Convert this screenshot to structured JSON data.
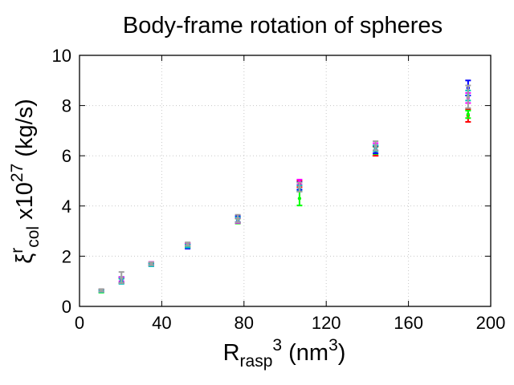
{
  "chart_data": {
    "type": "scatter",
    "title": "Body-frame rotation of spheres",
    "xlabel": {
      "base": "R",
      "sub": "rasp",
      "sup": "3",
      "rest": " (nm",
      "rest_sup": "3",
      "close": ")"
    },
    "ylabel": {
      "base": "ξ",
      "sup": "r",
      "sub": "col",
      "rest": " x10",
      "rest_sup": "27",
      "close": " (kg/s)"
    },
    "xlim": [
      0,
      200
    ],
    "ylim": [
      0,
      10
    ],
    "xticks": [
      0,
      40,
      80,
      120,
      160,
      200
    ],
    "yticks": [
      0,
      2,
      4,
      6,
      8,
      10
    ],
    "xtick_labels": [
      "0",
      "40",
      "80",
      "120",
      "160",
      "200"
    ],
    "ytick_labels": [
      "0",
      "2",
      "4",
      "6",
      "8",
      "10"
    ],
    "grid": true,
    "series": [
      {
        "name": "series-red",
        "color": "#ff0000",
        "x": [
          10.6,
          20.4,
          34.9,
          52.6,
          77,
          107,
          144,
          189
        ],
        "y": [
          0.62,
          1.02,
          1.7,
          2.45,
          3.44,
          4.88,
          6.18,
          7.6
        ],
        "err": [
          0.05,
          0.1,
          0.05,
          0.07,
          0.1,
          0.13,
          0.18,
          0.25
        ]
      },
      {
        "name": "series-green",
        "color": "#00ff00",
        "x": [
          10.6,
          20.4,
          34.9,
          52.6,
          77,
          107,
          144,
          189
        ],
        "y": [
          0.61,
          1.05,
          1.68,
          2.42,
          3.4,
          4.3,
          6.22,
          7.65
        ],
        "err": [
          0.06,
          0.1,
          0.05,
          0.06,
          0.1,
          0.28,
          0.15,
          0.15
        ]
      },
      {
        "name": "series-blue",
        "color": "#0000ff",
        "x": [
          10.6,
          20.4,
          34.9,
          52.6,
          77,
          107,
          144,
          189
        ],
        "y": [
          0.63,
          1.05,
          1.66,
          2.38,
          3.48,
          4.8,
          6.25,
          8.7
        ],
        "err": [
          0.04,
          0.12,
          0.05,
          0.08,
          0.12,
          0.15,
          0.15,
          0.3
        ]
      },
      {
        "name": "series-magenta",
        "color": "#ff00ff",
        "x": [
          10.6,
          20.4,
          34.9,
          52.6,
          77,
          107,
          144,
          189
        ],
        "y": [
          0.63,
          1.08,
          1.72,
          2.47,
          3.42,
          4.95,
          6.35,
          8.3
        ],
        "err": [
          0.04,
          0.08,
          0.05,
          0.05,
          0.1,
          0.1,
          0.15,
          0.2
        ]
      },
      {
        "name": "series-cyan",
        "color": "#00c0c0",
        "x": [
          10.6,
          20.4,
          34.9,
          52.6,
          77,
          107,
          144,
          189
        ],
        "y": [
          0.61,
          1.0,
          1.65,
          2.4,
          3.45,
          4.7,
          6.3,
          8.4
        ],
        "err": [
          0.04,
          0.1,
          0.05,
          0.06,
          0.1,
          0.12,
          0.12,
          0.2
        ]
      },
      {
        "name": "series-gray",
        "color": "#a0a0a0",
        "x": [
          10.6,
          20.4,
          34.9,
          52.6,
          77,
          107,
          144,
          189
        ],
        "y": [
          0.64,
          1.15,
          1.7,
          2.48,
          3.5,
          4.75,
          6.4,
          8.35
        ],
        "err": [
          0.05,
          0.22,
          0.06,
          0.07,
          0.15,
          0.18,
          0.18,
          0.45
        ]
      }
    ]
  }
}
